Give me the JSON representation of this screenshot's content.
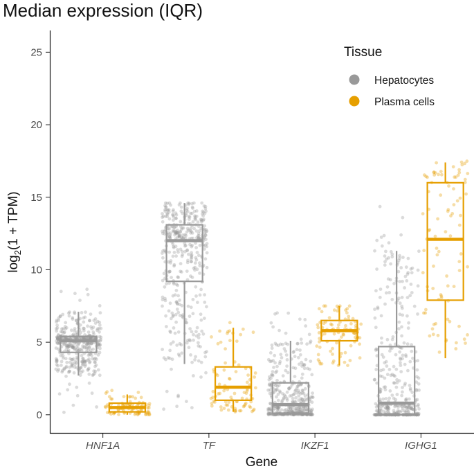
{
  "chart_data": {
    "type": "boxplot",
    "title": "Median expression (IQR)",
    "xlabel": "Gene",
    "ylabel": "log2(1 + TPM)",
    "ylim": [
      -1.3,
      26.5
    ],
    "yticks": [
      0,
      5,
      10,
      15,
      20,
      25
    ],
    "categories": [
      "HNF1A",
      "TF",
      "IKZF1",
      "IGHG1"
    ],
    "legend": {
      "title": "Tissue",
      "position": "top-right",
      "entries": [
        "Hepatocytes",
        "Plasma cells"
      ]
    },
    "series": [
      {
        "name": "Hepatocytes",
        "color": "#999999",
        "boxes": [
          {
            "category": "HNF1A",
            "q1": 4.3,
            "median": 5.1,
            "q3": 5.4,
            "whisker_low": 2.7,
            "whisker_high": 7.1,
            "point_min": 0.0,
            "point_max": 9.0,
            "n": 420
          },
          {
            "category": "TF",
            "q1": 9.2,
            "median": 12.0,
            "q3": 13.1,
            "whisker_low": 3.5,
            "whisker_high": 14.6,
            "point_min": 0.0,
            "point_max": 14.6,
            "n": 420
          },
          {
            "category": "IKZF1",
            "q1": 0.1,
            "median": 0.7,
            "q3": 2.2,
            "whisker_low": 0.0,
            "whisker_high": 5.1,
            "point_min": 0.0,
            "point_max": 7.5,
            "n": 420
          },
          {
            "category": "IGHG1",
            "q1": 0.0,
            "median": 0.8,
            "q3": 4.7,
            "whisker_low": 0.0,
            "whisker_high": 11.3,
            "point_min": 0.0,
            "point_max": 15.0,
            "n": 420
          }
        ]
      },
      {
        "name": "Plasma cells",
        "color": "#E69F00",
        "boxes": [
          {
            "category": "HNF1A",
            "q1": 0.2,
            "median": 0.5,
            "q3": 0.8,
            "whisker_low": 0.0,
            "whisker_high": 1.4,
            "point_min": 0.0,
            "point_max": 1.7,
            "n": 90
          },
          {
            "category": "TF",
            "q1": 1.0,
            "median": 1.9,
            "q3": 3.3,
            "whisker_low": 0.2,
            "whisker_high": 6.0,
            "point_min": 0.2,
            "point_max": 7.5,
            "n": 90
          },
          {
            "category": "IKZF1",
            "q1": 5.1,
            "median": 5.8,
            "q3": 6.5,
            "whisker_low": 3.4,
            "whisker_high": 7.5,
            "point_min": 3.4,
            "point_max": 7.5,
            "n": 90
          },
          {
            "category": "IGHG1",
            "q1": 7.9,
            "median": 12.1,
            "q3": 16.0,
            "whisker_low": 3.9,
            "whisker_high": 17.4,
            "point_min": 3.9,
            "point_max": 17.5,
            "n": 90
          }
        ]
      }
    ]
  }
}
